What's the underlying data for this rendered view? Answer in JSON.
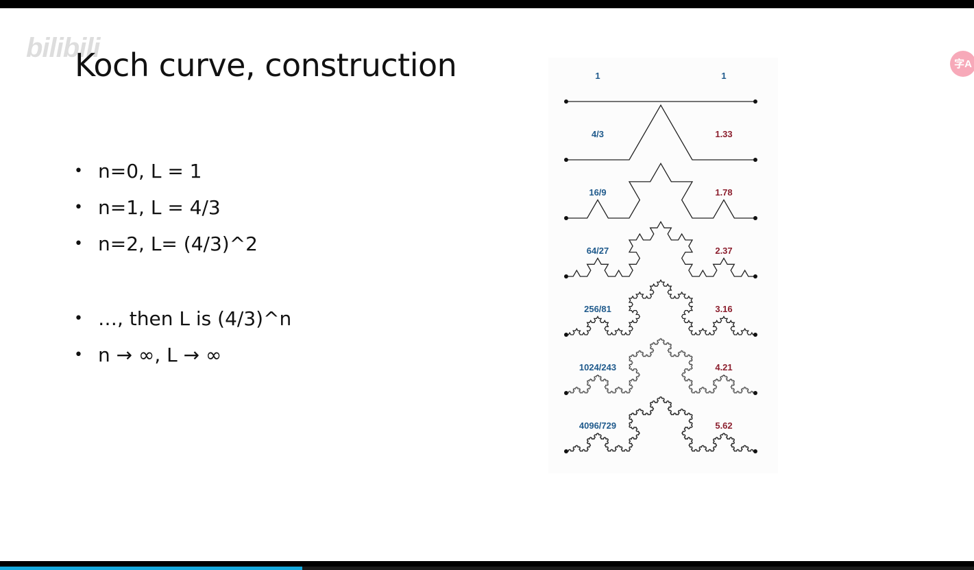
{
  "watermark": {
    "text": "",
    "logo": "bilibili"
  },
  "slide": {
    "title": "Koch curve, construction",
    "bullets": [
      "n=0, L = 1",
      "n=1, L = 4/3",
      "n=2, L= (4/3)^2",
      "…, then L is (4/3)^n",
      "n → ∞, L → ∞"
    ]
  },
  "figure": {
    "left_color": "#1f5a8c",
    "right_color": "#8c1f2e",
    "levels": [
      {
        "n": 0,
        "fraction": "1",
        "decimal": "1"
      },
      {
        "n": 1,
        "fraction": "4/3",
        "decimal": "1.33"
      },
      {
        "n": 2,
        "fraction": "16/9",
        "decimal": "1.78"
      },
      {
        "n": 3,
        "fraction": "64/27",
        "decimal": "2.37"
      },
      {
        "n": 4,
        "fraction": "256/81",
        "decimal": "3.16"
      },
      {
        "n": 5,
        "fraction": "1024/243",
        "decimal": "4.21"
      },
      {
        "n": 6,
        "fraction": "4096/729",
        "decimal": "5.62"
      }
    ]
  },
  "player": {
    "subtitle_badge_icon": "subtitle-icon",
    "progress": 0.31,
    "progress_color": "#16a9dc"
  }
}
